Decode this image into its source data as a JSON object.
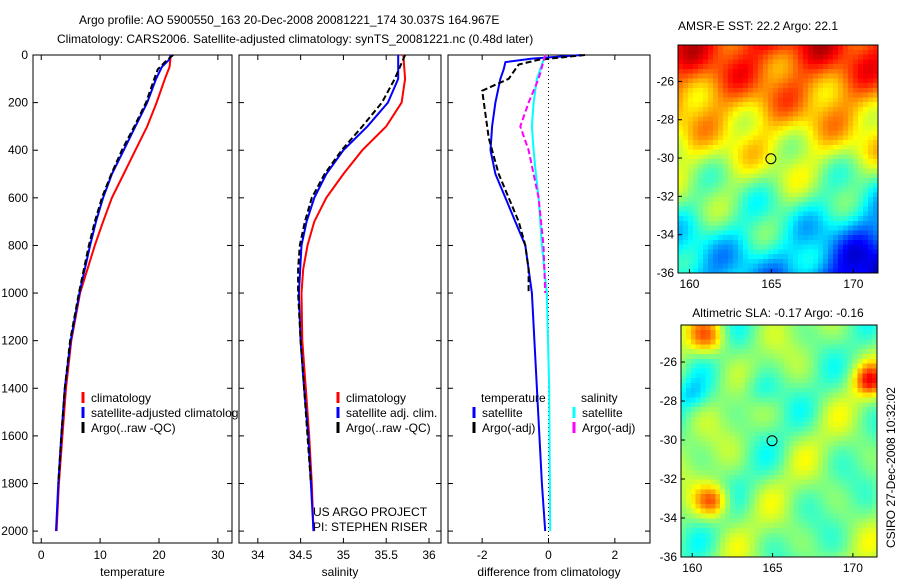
{
  "title": {
    "line1": "Argo profile: AO 5900550_163 20-Dec-2008 20081221_174 30.037S 164.967E",
    "line2": "Climatology: CARS2006. Satellite-adjusted climatology: synTS_20081221.nc (0.48d later)"
  },
  "colors": {
    "climatology": "#ff0000",
    "satellite": "#0000ff",
    "argo": "#000000",
    "sal_satellite": "#00ffff",
    "sal_argo": "#ff00ff"
  },
  "chart_data": [
    {
      "type": "line",
      "xlabel": "temperature",
      "ylabel": "",
      "xlim": [
        -1.4,
        32.4
      ],
      "ylim": [
        2050,
        0
      ],
      "xticks": [
        "0",
        "10",
        "20",
        "30"
      ],
      "xtickvals": [
        0,
        10,
        20,
        30
      ],
      "yticks": [
        "0",
        "200",
        "400",
        "600",
        "800",
        "1000",
        "1200",
        "1400",
        "1600",
        "1800",
        "2000"
      ],
      "ytickvals": [
        0,
        200,
        400,
        600,
        800,
        1000,
        1200,
        1400,
        1600,
        1800,
        2000
      ],
      "legend": [
        "climatology",
        "satellite-adjusted climatolog",
        "Argo(..raw -QC)"
      ],
      "series": [
        {
          "name": "climatology",
          "color": "#ff0000",
          "dash": false,
          "depth": [
            0,
            50,
            100,
            200,
            300,
            400,
            500,
            600,
            700,
            800,
            1000,
            1200,
            1400,
            1600,
            1800,
            2000
          ],
          "values": [
            22,
            21.8,
            21,
            19.6,
            18,
            16,
            14,
            12,
            10.5,
            9.1,
            6.6,
            5.1,
            4.2,
            3.6,
            3.0,
            2.6
          ]
        },
        {
          "name": "satellite-adjusted climatology",
          "color": "#0000ff",
          "dash": false,
          "depth": [
            0,
            20,
            50,
            100,
            200,
            300,
            400,
            500,
            600,
            700,
            800,
            1000,
            1200,
            1400,
            1600,
            1800,
            2000
          ],
          "values": [
            22,
            21.7,
            20.5,
            19.5,
            18,
            16,
            14,
            12,
            10.5,
            9.3,
            8.3,
            6.5,
            5,
            4,
            3.4,
            2.9,
            2.5
          ]
        },
        {
          "name": "Argo(..raw -QC)",
          "color": "#000000",
          "dash": true,
          "depth": [
            0,
            30,
            60,
            100,
            200,
            300,
            400,
            500,
            600,
            700,
            800,
            1000,
            1200,
            1400,
            1600,
            1800
          ],
          "values": [
            22.4,
            21,
            19.8,
            19.2,
            17.8,
            15.8,
            13.7,
            11.9,
            10.3,
            9.1,
            8.1,
            6.4,
            4.9,
            4,
            3.4,
            2.9
          ]
        }
      ]
    },
    {
      "type": "line",
      "xlabel": "salinity",
      "ylabel": "",
      "xlim": [
        33.78,
        36.14
      ],
      "ylim": [
        2050,
        0
      ],
      "xticks": [
        "34",
        "34.5",
        "35",
        "35.5",
        "36"
      ],
      "xtickvals": [
        34,
        34.5,
        35,
        35.5,
        36
      ],
      "legend": [
        "climatology",
        "satellite adj. clim.",
        "Argo(..raw -QC)"
      ],
      "series": [
        {
          "name": "climatology",
          "color": "#ff0000",
          "dash": false,
          "depth": [
            0,
            100,
            200,
            300,
            400,
            500,
            600,
            700,
            800,
            900,
            1000,
            1200,
            1400,
            1600,
            1800,
            2000
          ],
          "values": [
            35.7,
            35.72,
            35.68,
            35.5,
            35.22,
            35.0,
            34.8,
            34.66,
            34.58,
            34.53,
            34.51,
            34.52,
            34.56,
            34.6,
            34.63,
            34.65
          ]
        },
        {
          "name": "satellite adj. clim.",
          "color": "#0000ff",
          "dash": false,
          "depth": [
            0,
            100,
            200,
            300,
            400,
            500,
            600,
            700,
            800,
            1000,
            1200,
            1400,
            1600,
            1800,
            2000
          ],
          "values": [
            35.64,
            35.64,
            35.52,
            35.28,
            35.0,
            34.8,
            34.66,
            34.57,
            34.51,
            34.48,
            34.5,
            34.54,
            34.59,
            34.62,
            34.65
          ]
        },
        {
          "name": "Argo(..raw -QC)",
          "color": "#000000",
          "dash": true,
          "depth": [
            0,
            100,
            200,
            300,
            400,
            500,
            600,
            700,
            800,
            900,
            1000,
            1200,
            1400,
            1600,
            1800
          ],
          "values": [
            35.72,
            35.6,
            35.45,
            35.22,
            34.98,
            34.78,
            34.63,
            34.55,
            34.49,
            34.47,
            34.47,
            34.5,
            34.54,
            34.58,
            34.62
          ]
        }
      ]
    },
    {
      "type": "line",
      "xlabel": "difference from climatology",
      "ylabel": "",
      "xlim": [
        -3.03,
        3.06
      ],
      "ylim": [
        2050,
        0
      ],
      "xticks": [
        "-2",
        "0",
        "2"
      ],
      "xtickvals": [
        -2,
        0,
        2
      ],
      "legend_temperature_title": "temperature",
      "legend_salinity_title": "salinity",
      "legend": [
        "satellite",
        "Argo(-adj)",
        "satellite",
        "Argo(-adj)"
      ],
      "series": [
        {
          "name": "temperature satellite",
          "color": "#0000ff",
          "dash": false,
          "depth": [
            0,
            15,
            30,
            60,
            100,
            200,
            300,
            400,
            500,
            600,
            700,
            800,
            1000,
            1400,
            1800,
            2000
          ],
          "values": [
            1.0,
            -0.5,
            -1.3,
            -1.35,
            -1.45,
            -1.6,
            -1.7,
            -1.75,
            -1.6,
            -1.3,
            -1.0,
            -0.7,
            -0.5,
            -0.35,
            -0.2,
            -0.1
          ]
        },
        {
          "name": "temperature Argo(-adj)",
          "color": "#000000",
          "dash": true,
          "depth": [
            0,
            20,
            40,
            60,
            100,
            150,
            250,
            350,
            500,
            600,
            700,
            800,
            900,
            1000
          ],
          "values": [
            1.1,
            -0.3,
            -0.9,
            -1.0,
            -1.2,
            -2.0,
            -1.9,
            -1.8,
            -1.5,
            -1.2,
            -0.9,
            -0.7,
            -0.6,
            -0.6
          ]
        },
        {
          "name": "salinity satellite",
          "color": "#00ffff",
          "dash": false,
          "depth": [
            0,
            100,
            200,
            300,
            400,
            500,
            600,
            800,
            1000,
            1400,
            2000
          ],
          "values": [
            -0.1,
            -0.35,
            -0.45,
            -0.5,
            -0.45,
            -0.38,
            -0.3,
            -0.2,
            -0.05,
            0.02,
            0.05
          ]
        },
        {
          "name": "salinity Argo(-adj)",
          "color": "#ff00ff",
          "dash": true,
          "depth": [
            0,
            50,
            100,
            200,
            300,
            400,
            500,
            600,
            800,
            1000
          ],
          "values": [
            -0.1,
            -0.2,
            -0.3,
            -0.6,
            -0.85,
            -0.6,
            -0.45,
            -0.3,
            -0.15,
            -0.1
          ]
        }
      ]
    },
    {
      "type": "heatmap",
      "title": "AMSR-E SST: 22.2 Argo: 22.1",
      "xticks": [
        "160",
        "165",
        "170"
      ],
      "xtickvals": [
        160,
        165,
        170
      ],
      "xlim": [
        159.3,
        171.5
      ],
      "yticks": [
        "-26",
        "-28",
        "-30",
        "-32",
        "-34",
        "-36"
      ],
      "ytickvals": [
        -26,
        -28,
        -30,
        -32,
        -34,
        -36
      ],
      "ylim": [
        -36,
        -24.1
      ],
      "marker": {
        "lon": 164.967,
        "lat": -30.037
      }
    },
    {
      "type": "heatmap",
      "title": "Altimetric SLA: -0.17 Argo: -0.16",
      "xticks": [
        "160",
        "165",
        "170"
      ],
      "xtickvals": [
        160,
        165,
        170
      ],
      "xlim": [
        159.3,
        171.5
      ],
      "yticks": [
        "-26",
        "-28",
        "-30",
        "-32",
        "-34",
        "-36"
      ],
      "ytickvals": [
        -26,
        -28,
        -30,
        -32,
        -34,
        -36
      ],
      "ylim": [
        -36,
        -24.1
      ],
      "marker": {
        "lon": 164.967,
        "lat": -30.037
      }
    }
  ],
  "annotations": {
    "project": "US ARGO PROJECT",
    "pi": "PI: STEPHEN RISER",
    "credit": "CSIRO 27-Dec-2008 10:32:02"
  }
}
